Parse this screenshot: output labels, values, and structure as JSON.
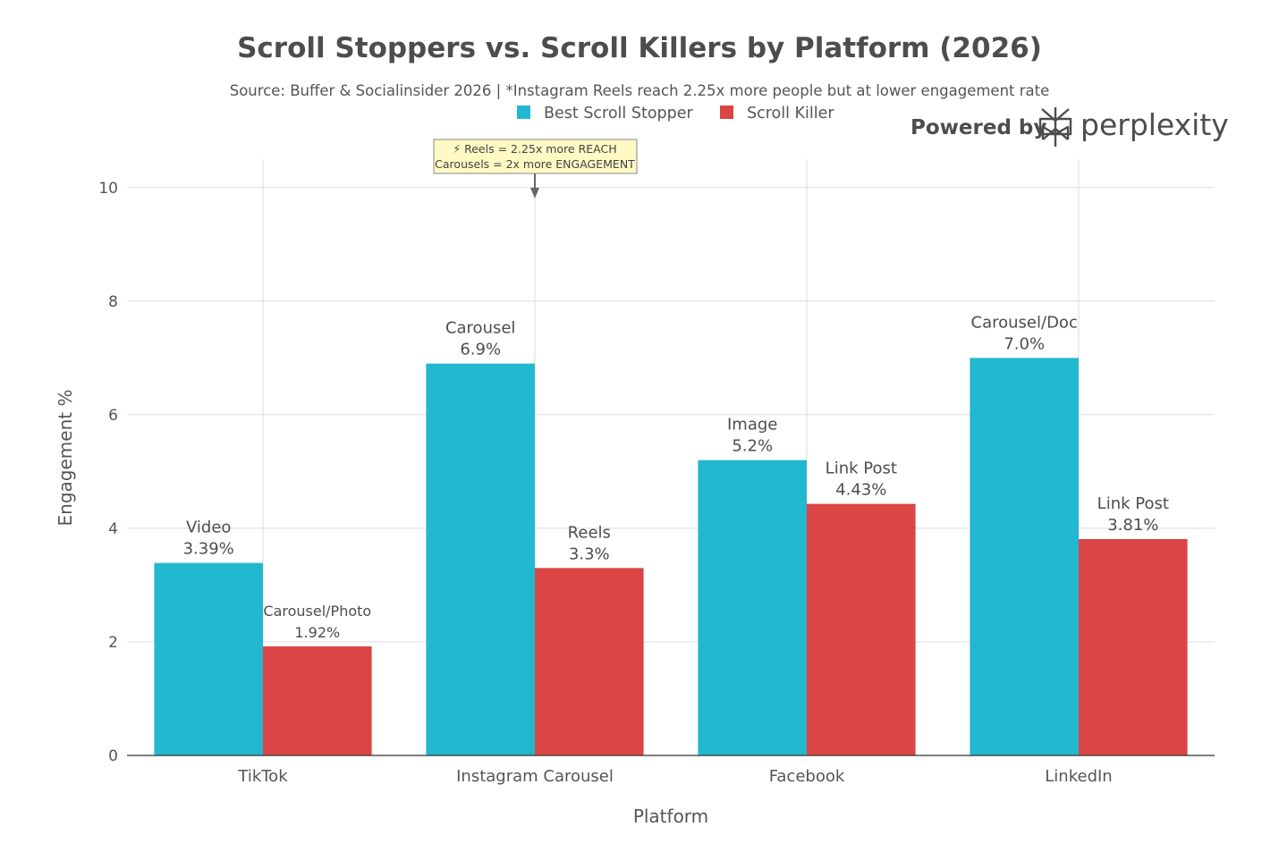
{
  "chart_data": {
    "type": "bar",
    "title": "Scroll Stoppers vs. Scroll Killers by Platform (2026)",
    "subtitle": "Source: Buffer & Socialinsider 2026 | *Instagram Reels reach 2.25x more people but at lower engagement rate",
    "xlabel": "Platform",
    "ylabel": "Engagement %",
    "ylim": [
      0,
      10.5
    ],
    "yticks": [
      "0",
      "2",
      "4",
      "6",
      "8",
      "10"
    ],
    "grid": true,
    "legend_position": "top",
    "categories": [
      "TikTok",
      "Instagram Carousel",
      "Facebook",
      "LinkedIn"
    ],
    "series": [
      {
        "name": "Best Scroll Stopper",
        "color": "#22b8cf",
        "values": [
          3.39,
          6.9,
          5.2,
          7.0
        ],
        "labels": [
          "Video",
          "Carousel",
          "Image",
          "Carousel/Doc"
        ],
        "value_labels": [
          "3.39%",
          "6.9%",
          "5.2%",
          "7.0%"
        ]
      },
      {
        "name": "Scroll Killer",
        "color": "#db4545",
        "values": [
          1.92,
          3.3,
          4.43,
          3.81
        ],
        "labels": [
          "Carousel/Photo",
          "Reels",
          "Link Post",
          "Link Post"
        ],
        "value_labels": [
          "1.92%",
          "3.3%",
          "4.43%",
          "3.81%"
        ]
      }
    ],
    "annotation": {
      "lines": [
        "⚡ Reels = 2.25x more REACH",
        "Carousels = 2x more ENGAGEMENT"
      ],
      "category": "Instagram Carousel",
      "y": 10
    }
  },
  "branding": {
    "prefix": "Powered by",
    "name": "perplexity",
    "icon": "perplexity-logo-icon",
    "color": "#4d4d4d"
  }
}
